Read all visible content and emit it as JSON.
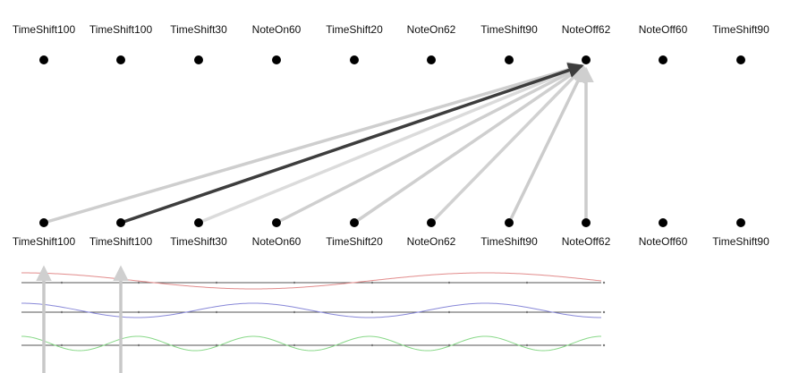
{
  "top_tokens": [
    "TimeShift100",
    "TimeShift100",
    "TimeShift30",
    "NoteOn60",
    "TimeShift20",
    "NoteOn62",
    "TimeShift90",
    "NoteOff62",
    "NoteOff60",
    "TimeShift90"
  ],
  "bottom_tokens": [
    "TimeShift100",
    "TimeShift100",
    "TimeShift30",
    "NoteOn60",
    "TimeShift20",
    "NoteOn62",
    "TimeShift90",
    "NoteOff62",
    "NoteOff60",
    "TimeShift90"
  ],
  "attention": {
    "target_index": 7,
    "edges": [
      {
        "source": 0,
        "weight": 0.3
      },
      {
        "source": 1,
        "weight": 1.0
      },
      {
        "source": 2,
        "weight": 0.12
      },
      {
        "source": 3,
        "weight": 0.28
      },
      {
        "source": 4,
        "weight": 0.28
      },
      {
        "source": 5,
        "weight": 0.26
      },
      {
        "source": 6,
        "weight": 0.34
      },
      {
        "source": 7,
        "weight": 0.34
      }
    ],
    "incoming_arrows": [
      0,
      1
    ]
  },
  "colors": {
    "node": "#000000",
    "edge_strong": "#3d3d3d",
    "edge_weak": "#d3d3d3",
    "wave_red": "#e28c8c",
    "wave_blue": "#8888d8",
    "wave_green": "#88d888",
    "staff_line": "#555555"
  },
  "waves": [
    {
      "color_key": "wave_red",
      "cycles": 1.25
    },
    {
      "color_key": "wave_blue",
      "cycles": 2.5
    },
    {
      "color_key": "wave_green",
      "cycles": 5
    }
  ]
}
